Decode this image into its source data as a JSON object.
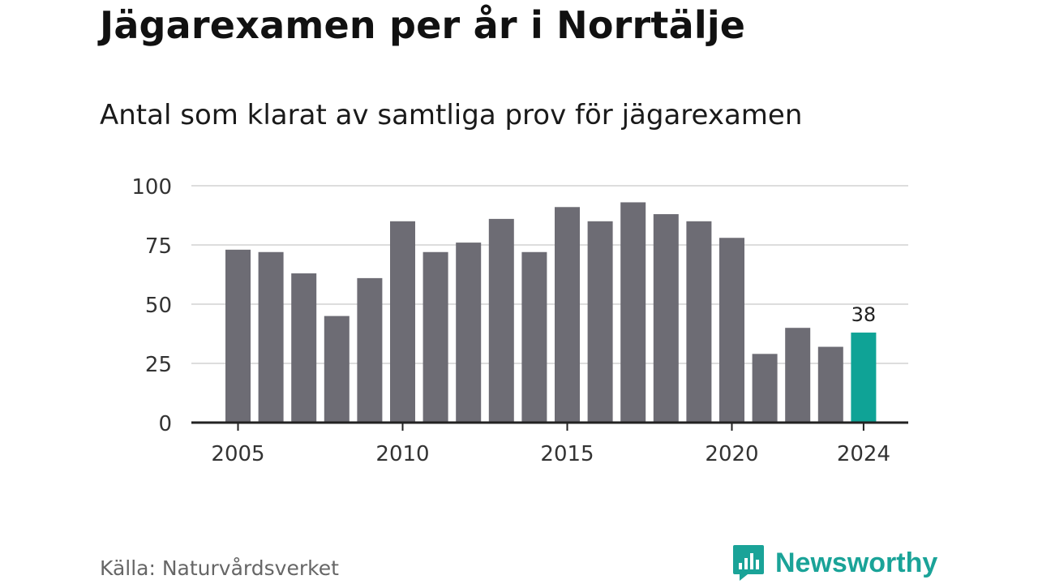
{
  "title": "Jägarexamen per år i Norrtälje",
  "subtitle": "Antal som klarat av samtliga prov för jägarexamen",
  "source": "Källa: Naturvårdsverket",
  "brand": "Newsworthy",
  "colors": {
    "bar": "#6d6c74",
    "highlight": "#0fa396",
    "grid": "#dddddd",
    "axis": "#222222",
    "brand": "#1aa398"
  },
  "chart_data": {
    "type": "bar",
    "x": [
      2005,
      2006,
      2007,
      2008,
      2009,
      2010,
      2011,
      2012,
      2013,
      2014,
      2015,
      2016,
      2017,
      2018,
      2019,
      2020,
      2021,
      2022,
      2023,
      2024
    ],
    "values": [
      73,
      72,
      63,
      45,
      61,
      85,
      72,
      76,
      86,
      72,
      91,
      85,
      93,
      88,
      85,
      78,
      29,
      40,
      32,
      38
    ],
    "ylim": [
      0,
      100
    ],
    "yticks": [
      0,
      25,
      50,
      75,
      100
    ],
    "xticks": [
      2005,
      2010,
      2015,
      2020,
      2024
    ],
    "highlight": {
      "x": 2024,
      "label": "38"
    },
    "grid": true
  }
}
